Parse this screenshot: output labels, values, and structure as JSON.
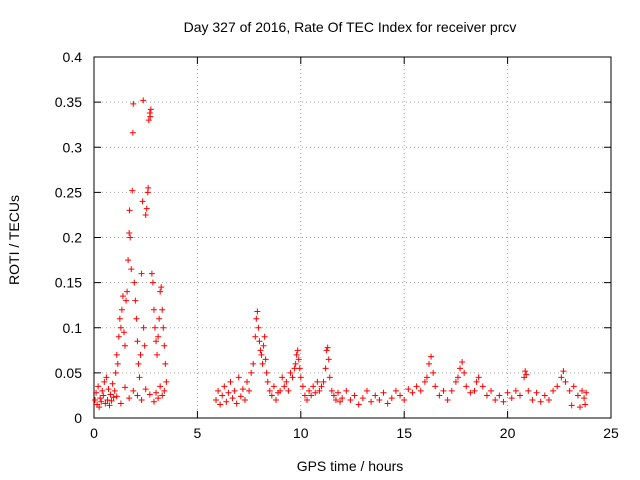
{
  "chart_data": {
    "type": "scatter",
    "title": "Day 327 of 2016, Rate Of TEC Index for receiver prcv",
    "xlabel": "GPS time / hours",
    "ylabel": "ROTI / TECUs",
    "xlim": [
      0,
      25
    ],
    "ylim": [
      0,
      0.4
    ],
    "xticks": [
      0,
      5,
      10,
      15,
      20,
      25
    ],
    "yticks": [
      0,
      0.05,
      0.1,
      0.15,
      0.2,
      0.25,
      0.3,
      0.35,
      0.4
    ],
    "xtick_labels": [
      "0",
      "5",
      "10",
      "15",
      "20",
      "25"
    ],
    "ytick_labels": [
      "0",
      "0.05",
      "0.1",
      "0.15",
      "0.2",
      "0.25",
      "0.3",
      "0.35",
      "0.4"
    ],
    "grid": true,
    "marker": "+",
    "marker_color": "#ff0000",
    "series": [
      {
        "name": "ROTI",
        "points": [
          [
            0.05,
            0.02
          ],
          [
            0.1,
            0.028
          ],
          [
            0.15,
            0.015
          ],
          [
            0.2,
            0.035
          ],
          [
            0.25,
            0.012
          ],
          [
            0.3,
            0.022
          ],
          [
            0.35,
            0.018
          ],
          [
            0.4,
            0.03
          ],
          [
            0.45,
            0.025
          ],
          [
            0.5,
            0.04
          ],
          [
            0.55,
            0.016
          ],
          [
            0.6,
            0.045
          ],
          [
            0.65,
            0.02
          ],
          [
            0.7,
            0.032
          ],
          [
            0.75,
            0.014
          ],
          [
            0.8,
            0.026
          ],
          [
            0.85,
            0.019
          ],
          [
            0.9,
            0.038
          ],
          [
            0.95,
            0.023
          ],
          [
            1.0,
            0.03
          ],
          [
            1.05,
            0.05
          ],
          [
            1.1,
            0.07
          ],
          [
            1.15,
            0.06
          ],
          [
            1.2,
            0.09
          ],
          [
            1.25,
            0.11
          ],
          [
            1.3,
            0.1
          ],
          [
            1.35,
            0.12
          ],
          [
            1.4,
            0.135
          ],
          [
            1.45,
            0.095
          ],
          [
            1.5,
            0.08
          ],
          [
            1.55,
            0.13
          ],
          [
            1.6,
            0.14
          ],
          [
            1.65,
            0.175
          ],
          [
            1.7,
            0.205
          ],
          [
            1.72,
            0.23
          ],
          [
            1.75,
            0.2
          ],
          [
            1.8,
            0.165
          ],
          [
            1.85,
            0.252
          ],
          [
            1.88,
            0.316
          ],
          [
            1.9,
            0.348
          ],
          [
            1.95,
            0.15
          ],
          [
            2.0,
            0.13
          ],
          [
            2.05,
            0.11
          ],
          [
            2.1,
            0.085
          ],
          [
            2.15,
            0.06
          ],
          [
            2.2,
            0.045
          ],
          [
            2.25,
            0.07
          ],
          [
            2.3,
            0.16
          ],
          [
            2.35,
            0.24
          ],
          [
            2.38,
            0.352
          ],
          [
            2.4,
            0.1
          ],
          [
            2.45,
            0.08
          ],
          [
            2.5,
            0.225
          ],
          [
            2.55,
            0.232
          ],
          [
            2.6,
            0.25
          ],
          [
            2.62,
            0.255
          ],
          [
            2.65,
            0.33
          ],
          [
            2.7,
            0.338
          ],
          [
            2.72,
            0.334
          ],
          [
            2.75,
            0.342
          ],
          [
            2.8,
            0.16
          ],
          [
            2.85,
            0.15
          ],
          [
            2.9,
            0.12
          ],
          [
            2.95,
            0.1
          ],
          [
            3.0,
            0.085
          ],
          [
            3.05,
            0.07
          ],
          [
            3.1,
            0.09
          ],
          [
            3.15,
            0.11
          ],
          [
            3.2,
            0.14
          ],
          [
            3.25,
            0.145
          ],
          [
            3.3,
            0.12
          ],
          [
            3.35,
            0.1
          ],
          [
            3.4,
            0.08
          ],
          [
            3.45,
            0.06
          ],
          [
            3.5,
            0.04
          ],
          [
            3.4,
            0.03
          ],
          [
            3.3,
            0.025
          ],
          [
            3.2,
            0.035
          ],
          [
            3.1,
            0.022
          ],
          [
            3.0,
            0.028
          ],
          [
            2.9,
            0.018
          ],
          [
            2.7,
            0.026
          ],
          [
            2.5,
            0.032
          ],
          [
            2.3,
            0.02
          ],
          [
            2.1,
            0.025
          ],
          [
            1.9,
            0.03
          ],
          [
            1.7,
            0.022
          ],
          [
            1.5,
            0.034
          ],
          [
            1.3,
            0.016
          ],
          [
            1.1,
            0.024
          ],
          [
            5.9,
            0.02
          ],
          [
            6.0,
            0.03
          ],
          [
            6.1,
            0.015
          ],
          [
            6.2,
            0.025
          ],
          [
            6.3,
            0.035
          ],
          [
            6.4,
            0.018
          ],
          [
            6.5,
            0.028
          ],
          [
            6.6,
            0.04
          ],
          [
            6.7,
            0.022
          ],
          [
            6.8,
            0.03
          ],
          [
            6.9,
            0.016
          ],
          [
            7.0,
            0.045
          ],
          [
            7.1,
            0.024
          ],
          [
            7.2,
            0.032
          ],
          [
            7.3,
            0.02
          ],
          [
            7.4,
            0.04
          ],
          [
            7.5,
            0.03
          ],
          [
            7.6,
            0.05
          ],
          [
            7.7,
            0.06
          ],
          [
            7.8,
            0.09
          ],
          [
            7.85,
            0.11
          ],
          [
            7.9,
            0.118
          ],
          [
            7.95,
            0.1
          ],
          [
            8.0,
            0.085
          ],
          [
            8.05,
            0.075
          ],
          [
            8.1,
            0.07
          ],
          [
            8.15,
            0.06
          ],
          [
            8.2,
            0.08
          ],
          [
            8.25,
            0.09
          ],
          [
            8.3,
            0.065
          ],
          [
            8.35,
            0.05
          ],
          [
            8.4,
            0.04
          ],
          [
            8.5,
            0.03
          ],
          [
            8.6,
            0.025
          ],
          [
            8.7,
            0.035
          ],
          [
            8.8,
            0.02
          ],
          [
            8.9,
            0.028
          ],
          [
            9.0,
            0.03
          ],
          [
            9.1,
            0.045
          ],
          [
            9.2,
            0.035
          ],
          [
            9.3,
            0.04
          ],
          [
            9.4,
            0.03
          ],
          [
            9.5,
            0.05
          ],
          [
            9.6,
            0.045
          ],
          [
            9.7,
            0.055
          ],
          [
            9.75,
            0.06
          ],
          [
            9.8,
            0.07
          ],
          [
            9.85,
            0.075
          ],
          [
            9.9,
            0.065
          ],
          [
            9.95,
            0.055
          ],
          [
            10.0,
            0.045
          ],
          [
            10.1,
            0.035
          ],
          [
            10.2,
            0.025
          ],
          [
            10.3,
            0.02
          ],
          [
            10.4,
            0.03
          ],
          [
            10.5,
            0.025
          ],
          [
            10.6,
            0.035
          ],
          [
            10.7,
            0.028
          ],
          [
            10.8,
            0.04
          ],
          [
            10.9,
            0.03
          ],
          [
            11.0,
            0.035
          ],
          [
            11.1,
            0.04
          ],
          [
            11.2,
            0.055
          ],
          [
            11.25,
            0.075
          ],
          [
            11.3,
            0.078
          ],
          [
            11.35,
            0.065
          ],
          [
            11.4,
            0.045
          ],
          [
            11.5,
            0.03
          ],
          [
            11.6,
            0.025
          ],
          [
            11.7,
            0.02
          ],
          [
            11.8,
            0.028
          ],
          [
            11.9,
            0.018
          ],
          [
            12.0,
            0.022
          ],
          [
            12.2,
            0.03
          ],
          [
            12.4,
            0.02
          ],
          [
            12.6,
            0.025
          ],
          [
            12.8,
            0.015
          ],
          [
            13.0,
            0.022
          ],
          [
            13.2,
            0.03
          ],
          [
            13.4,
            0.018
          ],
          [
            13.6,
            0.025
          ],
          [
            13.8,
            0.02
          ],
          [
            14.0,
            0.028
          ],
          [
            14.2,
            0.016
          ],
          [
            14.4,
            0.022
          ],
          [
            14.6,
            0.03
          ],
          [
            14.8,
            0.025
          ],
          [
            15.0,
            0.02
          ],
          [
            15.2,
            0.032
          ],
          [
            15.4,
            0.028
          ],
          [
            15.6,
            0.035
          ],
          [
            15.8,
            0.03
          ],
          [
            16.0,
            0.04
          ],
          [
            16.1,
            0.045
          ],
          [
            16.2,
            0.06
          ],
          [
            16.3,
            0.068
          ],
          [
            16.4,
            0.05
          ],
          [
            16.5,
            0.035
          ],
          [
            16.7,
            0.025
          ],
          [
            16.9,
            0.03
          ],
          [
            17.1,
            0.02
          ],
          [
            17.3,
            0.03
          ],
          [
            17.5,
            0.04
          ],
          [
            17.6,
            0.045
          ],
          [
            17.7,
            0.055
          ],
          [
            17.8,
            0.062
          ],
          [
            17.9,
            0.05
          ],
          [
            18.0,
            0.035
          ],
          [
            18.2,
            0.028
          ],
          [
            18.4,
            0.03
          ],
          [
            18.5,
            0.04
          ],
          [
            18.6,
            0.045
          ],
          [
            18.8,
            0.035
          ],
          [
            19.0,
            0.025
          ],
          [
            19.2,
            0.03
          ],
          [
            19.4,
            0.02
          ],
          [
            19.6,
            0.025
          ],
          [
            19.8,
            0.018
          ],
          [
            20.0,
            0.028
          ],
          [
            20.2,
            0.022
          ],
          [
            20.4,
            0.03
          ],
          [
            20.6,
            0.025
          ],
          [
            20.8,
            0.045
          ],
          [
            20.85,
            0.052
          ],
          [
            20.9,
            0.048
          ],
          [
            21.0,
            0.03
          ],
          [
            21.2,
            0.02
          ],
          [
            21.4,
            0.028
          ],
          [
            21.6,
            0.018
          ],
          [
            21.8,
            0.025
          ],
          [
            22.0,
            0.02
          ],
          [
            22.2,
            0.03
          ],
          [
            22.4,
            0.035
          ],
          [
            22.6,
            0.045
          ],
          [
            22.7,
            0.052
          ],
          [
            22.8,
            0.04
          ],
          [
            23.0,
            0.03
          ],
          [
            23.2,
            0.035
          ],
          [
            23.4,
            0.025
          ],
          [
            23.6,
            0.03
          ],
          [
            23.7,
            0.022
          ],
          [
            23.8,
            0.028
          ],
          [
            23.75,
            0.015
          ],
          [
            23.5,
            0.012
          ],
          [
            23.1,
            0.014
          ]
        ]
      }
    ]
  }
}
